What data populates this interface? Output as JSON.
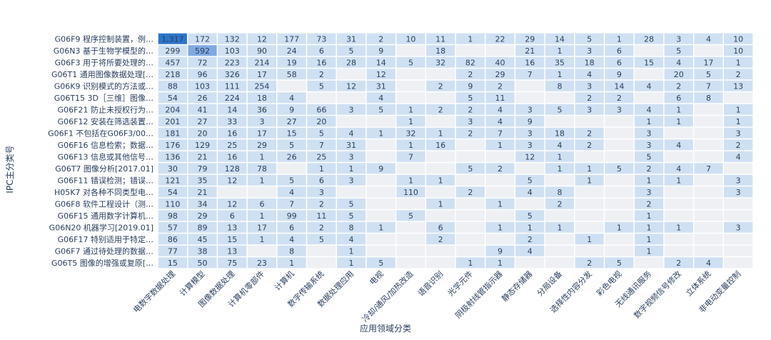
{
  "chart_data": {
    "type": "heatmap",
    "xlabel": "应用领域分类",
    "ylabel": "IPC主分类号",
    "x": [
      "电数字数据处理",
      "计算模型",
      "图像数据处理",
      "计算机零部件",
      "计算机",
      "数字传输系统",
      "数据处理应用",
      "电视",
      "冷却/通风/加热改造",
      "语音识别",
      "光学元件",
      "阴极射线管指示器",
      "静态存储器",
      "分局设备",
      "选择性内容分发",
      "彩色电视",
      "无线通讯服务",
      "数字视频信号修改",
      "立体系统",
      "非电动变量控制"
    ],
    "y": [
      "G06F9 程序控制装置，例…",
      "G06N3 基于生物学模型的…",
      "G06F3 用于将所要处理的…",
      "G06T1 通用图像数据处理[…",
      "G06K9 识别模式的方法或…",
      "G06T15 3D［三维］图像…",
      "G06F21 防止未授权行为…",
      "G06F12 安装在筛选装置…",
      "G06F1 不包括在G06F3/00…",
      "G06F16 信息检索；数据…",
      "G06F13 信息或其他信号…",
      "G06T7 图像分析[2017.01]",
      "G06F11 错误检测；错误…",
      "H05K7 对各种不同类型电…",
      "G06F8 软件工程设计（测…",
      "G06F15 通用数字计算机…",
      "G06N20 机器学习[2019.01]",
      "G06F17 特别适用于特定…",
      "G06F7 通过待处理的数据…",
      "G06T5 图像的增强或复原[…"
    ],
    "z": [
      [
        "1,317",
        "172",
        "132",
        "12",
        "177",
        "73",
        "31",
        "2",
        "10",
        "11",
        "1",
        "22",
        "29",
        "14",
        "5",
        "1",
        "28",
        "3",
        "4",
        "10"
      ],
      [
        "299",
        "592",
        "103",
        "90",
        "24",
        "6",
        "5",
        "9",
        "",
        "18",
        "",
        "",
        "21",
        "1",
        "3",
        "6",
        "",
        "5",
        "",
        "10"
      ],
      [
        "457",
        "72",
        "223",
        "214",
        "19",
        "16",
        "28",
        "14",
        "5",
        "32",
        "82",
        "40",
        "16",
        "35",
        "18",
        "6",
        "15",
        "4",
        "17",
        "1"
      ],
      [
        "218",
        "96",
        "326",
        "17",
        "58",
        "2",
        "",
        "12",
        "",
        "",
        "2",
        "29",
        "7",
        "1",
        "4",
        "9",
        "",
        "20",
        "5",
        "2"
      ],
      [
        "88",
        "103",
        "111",
        "254",
        "",
        "5",
        "12",
        "31",
        "",
        "2",
        "9",
        "2",
        "",
        "8",
        "3",
        "14",
        "4",
        "2",
        "7",
        "13"
      ],
      [
        "54",
        "26",
        "224",
        "18",
        "4",
        "",
        "",
        "4",
        "",
        "",
        "5",
        "11",
        "",
        "",
        "2",
        "2",
        "",
        "6",
        "8",
        ""
      ],
      [
        "204",
        "41",
        "14",
        "36",
        "9",
        "66",
        "3",
        "5",
        "1",
        "2",
        "2",
        "4",
        "3",
        "5",
        "3",
        "3",
        "4",
        "1",
        "",
        "1"
      ],
      [
        "201",
        "27",
        "33",
        "3",
        "27",
        "20",
        "",
        "",
        "1",
        "",
        "3",
        "4",
        "9",
        "",
        "",
        "",
        "1",
        "1",
        "",
        "1"
      ],
      [
        "181",
        "20",
        "16",
        "17",
        "15",
        "5",
        "4",
        "1",
        "32",
        "1",
        "2",
        "7",
        "3",
        "18",
        "2",
        "",
        "3",
        "",
        "",
        "3"
      ],
      [
        "176",
        "129",
        "25",
        "29",
        "5",
        "7",
        "31",
        "",
        "1",
        "16",
        "",
        "1",
        "3",
        "4",
        "2",
        "",
        "3",
        "4",
        "",
        "2"
      ],
      [
        "136",
        "21",
        "16",
        "1",
        "26",
        "25",
        "3",
        "",
        "7",
        "",
        "",
        "",
        "12",
        "1",
        "",
        "",
        "5",
        "",
        "",
        "4"
      ],
      [
        "30",
        "79",
        "128",
        "78",
        "",
        "1",
        "1",
        "9",
        "",
        "",
        "5",
        "2",
        "",
        "1",
        "1",
        "5",
        "2",
        "4",
        "7",
        ""
      ],
      [
        "121",
        "35",
        "12",
        "1",
        "5",
        "6",
        "3",
        "",
        "1",
        "1",
        "",
        "",
        "5",
        "",
        "1",
        "",
        "1",
        "1",
        "",
        "3"
      ],
      [
        "54",
        "21",
        "",
        "",
        "4",
        "3",
        "",
        "",
        "110",
        "",
        "2",
        "",
        "4",
        "8",
        "",
        "",
        "3",
        "",
        "",
        "3"
      ],
      [
        "110",
        "34",
        "12",
        "6",
        "7",
        "2",
        "5",
        "",
        "",
        "1",
        "",
        "1",
        "",
        "2",
        "",
        "",
        "2",
        "",
        "",
        ""
      ],
      [
        "98",
        "29",
        "6",
        "1",
        "99",
        "11",
        "5",
        "",
        "5",
        "",
        "",
        "",
        "5",
        "",
        "",
        "",
        "1",
        "",
        "",
        ""
      ],
      [
        "57",
        "89",
        "13",
        "17",
        "6",
        "2",
        "8",
        "1",
        "",
        "6",
        "",
        "1",
        "1",
        "1",
        "",
        "1",
        "1",
        "1",
        "",
        "3"
      ],
      [
        "86",
        "45",
        "15",
        "1",
        "4",
        "5",
        "4",
        "",
        "",
        "2",
        "",
        "",
        "2",
        "",
        "1",
        "",
        "1",
        "",
        "",
        ""
      ],
      [
        "77",
        "38",
        "13",
        "",
        "8",
        "",
        "1",
        "",
        "",
        "",
        "",
        "9",
        "4",
        "",
        "",
        "",
        "1",
        "",
        "",
        ""
      ],
      [
        "15",
        "50",
        "75",
        "23",
        "1",
        "",
        "1",
        "5",
        "",
        "",
        "1",
        "1",
        "",
        "",
        "2",
        "5",
        "",
        "2",
        "4",
        ""
      ]
    ]
  },
  "colors": {
    "high": "#2d75c9",
    "mid": "#7fa9e2",
    "low": "#cfe0f2",
    "empty": "#eef0f4"
  }
}
